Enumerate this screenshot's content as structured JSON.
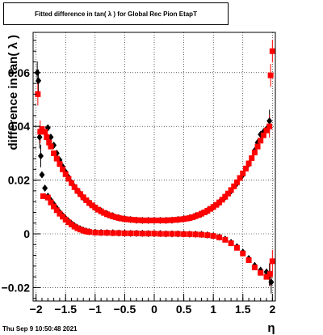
{
  "title": "Fitted difference in tan( λ ) for Global Rec Pion EtapT",
  "timestamp": "Thu Sep  9 10:50:48 2021",
  "chart_data": {
    "type": "scatter",
    "title": "Fitted difference in tan( λ ) for Global Rec Pion EtapT",
    "xlabel": "η",
    "ylabel": "difference in tan( λ )",
    "xlim": [
      -2.05,
      2.05
    ],
    "ylim": [
      -0.025,
      0.075
    ],
    "xticks": [
      -2,
      -1.5,
      -1,
      -0.5,
      0,
      0.5,
      1,
      1.5,
      2
    ],
    "xtick_labels": [
      "−2",
      "−1.5",
      "−1",
      "−0.5",
      "0",
      "0.5",
      "1",
      "1.5",
      "2"
    ],
    "yticks": [
      -0.02,
      0,
      0.02,
      0.04,
      0.06
    ],
    "ytick_labels": [
      "−0.02",
      "0",
      "0.02",
      "0.04",
      "0.06"
    ],
    "grid": true,
    "series": [
      {
        "marker": "diamond",
        "color": "#000000",
        "points": [
          [
            -1.98,
            0.06
          ],
          [
            -1.96,
            0.057
          ],
          [
            -1.94,
            0.036
          ],
          [
            -1.92,
            0.029
          ],
          [
            -1.9,
            0.022
          ],
          [
            -1.85,
            0.017
          ],
          [
            -1.8,
            0.014
          ],
          [
            -1.75,
            0.0125
          ],
          [
            -1.7,
            0.011
          ],
          [
            -1.65,
            0.0095
          ],
          [
            -1.6,
            0.008
          ],
          [
            -1.55,
            0.0068
          ],
          [
            -1.5,
            0.0057
          ],
          [
            -1.45,
            0.0047
          ],
          [
            -1.4,
            0.0038
          ],
          [
            -1.35,
            0.003
          ],
          [
            -1.3,
            0.0023
          ],
          [
            -1.25,
            0.0018
          ],
          [
            -1.2,
            0.0013
          ],
          [
            -1.15,
            0.001
          ],
          [
            -1.1,
            0.0008
          ],
          [
            -1.0,
            0.0006
          ],
          [
            -0.9,
            0.0005
          ],
          [
            -0.8,
            0.0004
          ],
          [
            -0.7,
            0.0004
          ],
          [
            -0.6,
            0.0003
          ],
          [
            -0.5,
            0.0003
          ],
          [
            -0.4,
            0.0002
          ],
          [
            -0.3,
            0.0002
          ],
          [
            -0.2,
            0.0002
          ],
          [
            -0.1,
            0.0001
          ],
          [
            0.0,
            0.0001
          ],
          [
            0.1,
            0.0001
          ],
          [
            0.2,
            0.0
          ],
          [
            0.3,
            0.0
          ],
          [
            0.4,
            0.0
          ],
          [
            0.5,
            0.0
          ],
          [
            0.6,
            -0.0001
          ],
          [
            0.7,
            -0.0001
          ],
          [
            0.8,
            -0.0002
          ],
          [
            0.9,
            -0.0004
          ],
          [
            1.0,
            -0.0007
          ],
          [
            1.1,
            -0.0012
          ],
          [
            1.2,
            -0.002
          ],
          [
            1.3,
            -0.0032
          ],
          [
            1.4,
            -0.0048
          ],
          [
            1.5,
            -0.0068
          ],
          [
            1.6,
            -0.0092
          ],
          [
            1.7,
            -0.0118
          ],
          [
            1.8,
            -0.0135
          ],
          [
            1.9,
            -0.0142
          ],
          [
            1.95,
            -0.0152
          ],
          [
            1.98,
            -0.018
          ],
          [
            -1.8,
            0.0395
          ],
          [
            -1.75,
            0.036
          ],
          [
            -1.7,
            0.033
          ],
          [
            -1.65,
            0.03
          ],
          [
            -1.6,
            0.0275
          ],
          [
            -1.55,
            0.025
          ],
          [
            -1.5,
            0.023
          ],
          [
            -1.45,
            0.021
          ],
          [
            -1.4,
            0.019
          ],
          [
            -1.35,
            0.0175
          ],
          [
            -1.3,
            0.016
          ],
          [
            -1.25,
            0.0148
          ],
          [
            -1.2,
            0.0135
          ],
          [
            -1.1,
            0.0115
          ],
          [
            -1.0,
            0.0098
          ],
          [
            -0.9,
            0.0085
          ],
          [
            -0.8,
            0.0075
          ],
          [
            -0.7,
            0.0067
          ],
          [
            -0.6,
            0.006
          ],
          [
            -0.5,
            0.0056
          ],
          [
            -0.4,
            0.0053
          ],
          [
            -0.3,
            0.0051
          ],
          [
            -0.2,
            0.005
          ],
          [
            -0.1,
            0.005
          ],
          [
            0.0,
            0.005
          ],
          [
            0.1,
            0.005
          ],
          [
            0.2,
            0.005
          ],
          [
            0.3,
            0.0051
          ],
          [
            0.4,
            0.0053
          ],
          [
            0.5,
            0.0056
          ],
          [
            0.6,
            0.006
          ],
          [
            0.7,
            0.0067
          ],
          [
            0.8,
            0.0075
          ],
          [
            0.9,
            0.0086
          ],
          [
            1.0,
            0.01
          ],
          [
            1.1,
            0.0117
          ],
          [
            1.2,
            0.0137
          ],
          [
            1.3,
            0.016
          ],
          [
            1.4,
            0.0188
          ],
          [
            1.5,
            0.022
          ],
          [
            1.6,
            0.026
          ],
          [
            1.7,
            0.031
          ],
          [
            1.75,
            0.034
          ],
          [
            1.8,
            0.037
          ],
          [
            1.85,
            0.038
          ],
          [
            1.9,
            0.039
          ],
          [
            1.95,
            0.042
          ]
        ]
      },
      {
        "marker": "square",
        "color": "#ff0000",
        "points": [
          [
            -1.97,
            0.052
          ],
          [
            -1.93,
            0.038
          ],
          [
            -1.9,
            0.039
          ],
          [
            -1.88,
            0.014
          ],
          [
            -1.8,
            0.0135
          ],
          [
            -1.75,
            0.0117
          ],
          [
            -1.7,
            0.0102
          ],
          [
            -1.65,
            0.0088
          ],
          [
            -1.6,
            0.0075
          ],
          [
            -1.55,
            0.0064
          ],
          [
            -1.5,
            0.0053
          ],
          [
            -1.45,
            0.0043
          ],
          [
            -1.4,
            0.0035
          ],
          [
            -1.35,
            0.0027
          ],
          [
            -1.3,
            0.0021
          ],
          [
            -1.25,
            0.0016
          ],
          [
            -1.2,
            0.0012
          ],
          [
            -1.15,
            0.0009
          ],
          [
            -1.1,
            0.0007
          ],
          [
            -1.0,
            0.0005
          ],
          [
            -0.9,
            0.0004
          ],
          [
            -0.8,
            0.0004
          ],
          [
            -0.7,
            0.0003
          ],
          [
            -0.6,
            0.0003
          ],
          [
            -0.5,
            0.0002
          ],
          [
            -0.4,
            0.0002
          ],
          [
            -0.3,
            0.0002
          ],
          [
            -0.2,
            0.0001
          ],
          [
            -0.1,
            0.0001
          ],
          [
            0.0,
            0.0001
          ],
          [
            0.1,
            0.0
          ],
          [
            0.2,
            0.0
          ],
          [
            0.3,
            0.0
          ],
          [
            0.4,
            0.0
          ],
          [
            0.5,
            -0.0001
          ],
          [
            0.6,
            -0.0001
          ],
          [
            0.7,
            -0.0002
          ],
          [
            0.8,
            -0.0003
          ],
          [
            0.9,
            -0.0005
          ],
          [
            1.0,
            -0.0008
          ],
          [
            1.1,
            -0.0013
          ],
          [
            1.2,
            -0.0022
          ],
          [
            1.3,
            -0.0035
          ],
          [
            1.4,
            -0.0052
          ],
          [
            1.5,
            -0.0073
          ],
          [
            1.6,
            -0.0098
          ],
          [
            1.7,
            -0.0125
          ],
          [
            1.8,
            -0.0145
          ],
          [
            1.9,
            -0.016
          ],
          [
            1.96,
            -0.015
          ],
          [
            2.0,
            -0.0102
          ],
          [
            -1.85,
            0.038
          ],
          [
            -1.82,
            0.036
          ],
          [
            -1.78,
            0.034
          ],
          [
            -1.75,
            0.0325
          ],
          [
            -1.7,
            0.03
          ],
          [
            -1.65,
            0.028
          ],
          [
            -1.6,
            0.026
          ],
          [
            -1.55,
            0.024
          ],
          [
            -1.5,
            0.0222
          ],
          [
            -1.45,
            0.0205
          ],
          [
            -1.4,
            0.0189
          ],
          [
            -1.35,
            0.0174
          ],
          [
            -1.3,
            0.016
          ],
          [
            -1.25,
            0.0148
          ],
          [
            -1.2,
            0.0136
          ],
          [
            -1.15,
            0.0125
          ],
          [
            -1.1,
            0.0115
          ],
          [
            -1.05,
            0.0106
          ],
          [
            -1.0,
            0.0098
          ],
          [
            -0.95,
            0.009
          ],
          [
            -0.9,
            0.0084
          ],
          [
            -0.85,
            0.0078
          ],
          [
            -0.8,
            0.0073
          ],
          [
            -0.75,
            0.0069
          ],
          [
            -0.7,
            0.0065
          ],
          [
            -0.65,
            0.0062
          ],
          [
            -0.6,
            0.0059
          ],
          [
            -0.55,
            0.0057
          ],
          [
            -0.5,
            0.0055
          ],
          [
            -0.45,
            0.0054
          ],
          [
            -0.4,
            0.0053
          ],
          [
            -0.35,
            0.0052
          ],
          [
            -0.3,
            0.0051
          ],
          [
            -0.25,
            0.0051
          ],
          [
            -0.2,
            0.005
          ],
          [
            -0.15,
            0.005
          ],
          [
            -0.1,
            0.005
          ],
          [
            -0.05,
            0.005
          ],
          [
            0.0,
            0.005
          ],
          [
            0.05,
            0.005
          ],
          [
            0.1,
            0.005
          ],
          [
            0.15,
            0.005
          ],
          [
            0.2,
            0.005
          ],
          [
            0.25,
            0.0051
          ],
          [
            0.3,
            0.0051
          ],
          [
            0.35,
            0.0052
          ],
          [
            0.4,
            0.0053
          ],
          [
            0.45,
            0.0054
          ],
          [
            0.5,
            0.0055
          ],
          [
            0.55,
            0.0057
          ],
          [
            0.6,
            0.0059
          ],
          [
            0.65,
            0.0062
          ],
          [
            0.7,
            0.0066
          ],
          [
            0.75,
            0.007
          ],
          [
            0.8,
            0.0075
          ],
          [
            0.85,
            0.008
          ],
          [
            0.9,
            0.0086
          ],
          [
            0.95,
            0.0093
          ],
          [
            1.0,
            0.01
          ],
          [
            1.05,
            0.0108
          ],
          [
            1.1,
            0.0117
          ],
          [
            1.15,
            0.0127
          ],
          [
            1.2,
            0.0138
          ],
          [
            1.25,
            0.015
          ],
          [
            1.3,
            0.0163
          ],
          [
            1.35,
            0.0177
          ],
          [
            1.4,
            0.0192
          ],
          [
            1.45,
            0.0208
          ],
          [
            1.5,
            0.0225
          ],
          [
            1.55,
            0.0243
          ],
          [
            1.6,
            0.0262
          ],
          [
            1.65,
            0.0282
          ],
          [
            1.7,
            0.0303
          ],
          [
            1.75,
            0.0325
          ],
          [
            1.8,
            0.0347
          ],
          [
            1.85,
            0.0367
          ],
          [
            1.9,
            0.0385
          ],
          [
            1.95,
            0.04
          ],
          [
            1.97,
            0.059
          ],
          [
            2.0,
            0.068
          ]
        ]
      }
    ]
  }
}
